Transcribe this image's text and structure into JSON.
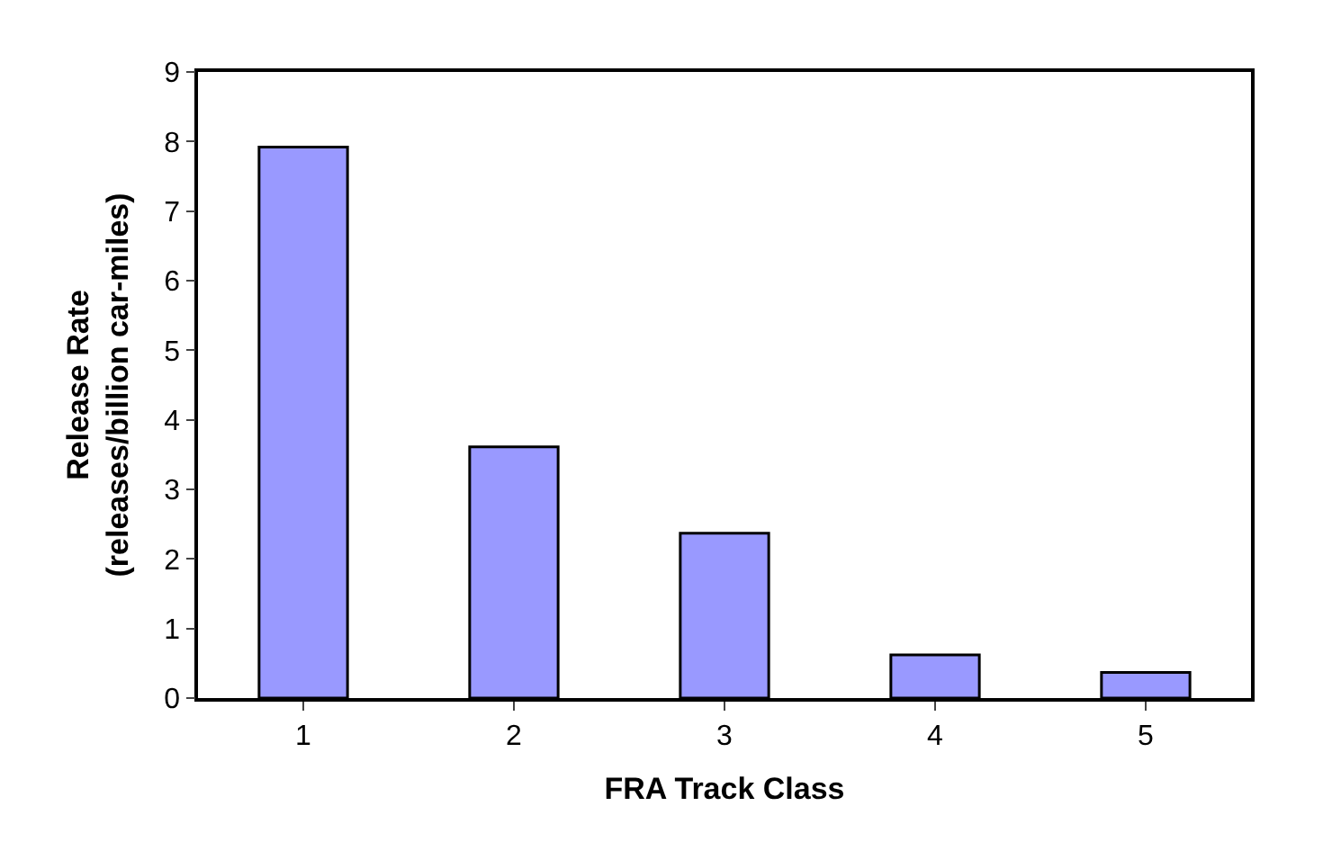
{
  "chart_data": {
    "type": "bar",
    "categories": [
      "1",
      "2",
      "3",
      "4",
      "5"
    ],
    "values": [
      7.92,
      3.61,
      2.37,
      0.62,
      0.37
    ],
    "color": "#9999ff",
    "xlabel": "FRA Track Class",
    "ylabel": "Release Rate\n(releases/billion car-miles)",
    "ylim": [
      0,
      9
    ],
    "yticks": [
      0,
      1,
      2,
      3,
      4,
      5,
      6,
      7,
      8,
      9
    ]
  }
}
